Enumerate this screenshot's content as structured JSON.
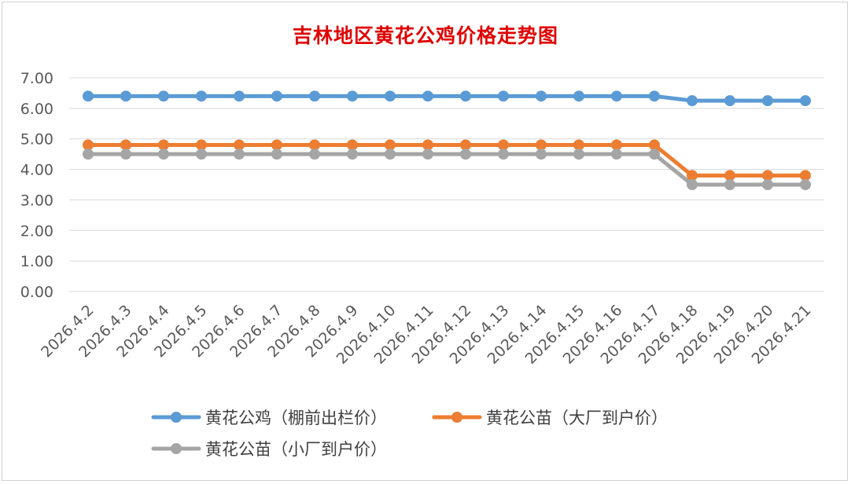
{
  "chart_data": {
    "type": "line",
    "title": "吉林地区黄花公鸡价格走势图",
    "categories": [
      "2026.4.2",
      "2026.4.3",
      "2026.4.4",
      "2026.4.5",
      "2026.4.6",
      "2026.4.7",
      "2026.4.8",
      "2026.4.9",
      "2026.4.10",
      "2026.4.11",
      "2026.4.12",
      "2026.4.13",
      "2026.4.14",
      "2026.4.15",
      "2026.4.16",
      "2026.4.17",
      "2026.4.18",
      "2026.4.19",
      "2026.4.20",
      "2026.4.21"
    ],
    "ylim": [
      0,
      7
    ],
    "yticks": [
      "0.00",
      "1.00",
      "2.00",
      "3.00",
      "4.00",
      "5.00",
      "6.00",
      "7.00"
    ],
    "grid": true,
    "legend": "bottom",
    "series": [
      {
        "name": "黄花公鸡（棚前出栏价）",
        "color": "#5b9bd5",
        "values": [
          6.4,
          6.4,
          6.4,
          6.4,
          6.4,
          6.4,
          6.4,
          6.4,
          6.4,
          6.4,
          6.4,
          6.4,
          6.4,
          6.4,
          6.4,
          6.4,
          6.25,
          6.25,
          6.25,
          6.25
        ]
      },
      {
        "name": "黄花公苗（大厂到户价）",
        "color": "#ed7d31",
        "values": [
          4.8,
          4.8,
          4.8,
          4.8,
          4.8,
          4.8,
          4.8,
          4.8,
          4.8,
          4.8,
          4.8,
          4.8,
          4.8,
          4.8,
          4.8,
          4.8,
          3.8,
          3.8,
          3.8,
          3.8
        ]
      },
      {
        "name": "黄花公苗（小厂到户价）",
        "color": "#a5a5a5",
        "values": [
          4.5,
          4.5,
          4.5,
          4.5,
          4.5,
          4.5,
          4.5,
          4.5,
          4.5,
          4.5,
          4.5,
          4.5,
          4.5,
          4.5,
          4.5,
          4.5,
          3.5,
          3.5,
          3.5,
          3.5
        ]
      }
    ]
  }
}
